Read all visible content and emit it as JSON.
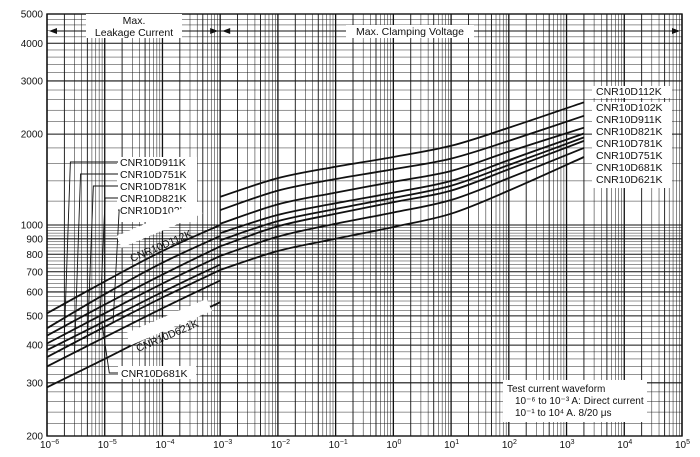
{
  "chart_data": {
    "type": "line",
    "title": "",
    "xlabel": "",
    "ylabel": "",
    "x_scale": "log",
    "y_scale": "log",
    "xlim": [
      1e-06,
      100000.0
    ],
    "ylim": [
      200,
      5000
    ],
    "grid": true,
    "x_ticks": [
      1e-06,
      1e-05,
      0.0001,
      0.001,
      0.01,
      0.1,
      1,
      10,
      100,
      1000,
      10000,
      100000
    ],
    "x_tick_labels": [
      {
        "base": "10",
        "exp": "−6"
      },
      {
        "base": "10",
        "exp": "−5"
      },
      {
        "base": "10",
        "exp": "−4"
      },
      {
        "base": "10",
        "exp": "−3"
      },
      {
        "base": "10",
        "exp": "−2"
      },
      {
        "base": "10",
        "exp": "−1"
      },
      {
        "base": "10",
        "exp": "0"
      },
      {
        "base": "10",
        "exp": "1"
      },
      {
        "base": "10",
        "exp": "2"
      },
      {
        "base": "10",
        "exp": "3"
      },
      {
        "base": "10",
        "exp": "4"
      },
      {
        "base": "10",
        "exp": "5"
      }
    ],
    "y_ticks": [
      200,
      300,
      400,
      500,
      600,
      700,
      800,
      900,
      1000,
      2000,
      3000,
      4000,
      5000
    ],
    "y_tick_labels": [
      "200",
      "300",
      "400",
      "500",
      "600",
      "700",
      "800",
      "900",
      "1000",
      "2000",
      "3000",
      "4000",
      "5000"
    ],
    "regions": [
      {
        "label": "Max.\nLeakage Current",
        "x_from": 1e-06,
        "x_to": 0.001
      },
      {
        "label": "Max. Clamping Voltage",
        "x_from": 0.001,
        "x_to": 100000.0
      }
    ],
    "note": [
      "Test current waveform",
      "10⁻⁶ to 10⁻³ A: Direct current",
      "10⁻¹ to 10⁴ A.  8/20 μs"
    ],
    "series": [
      {
        "name": "CNR10D112K",
        "leakage": [
          [
            1e-06,
            510
          ],
          [
            1e-05,
            650
          ],
          [
            0.0001,
            820
          ],
          [
            0.001,
            1000
          ]
        ],
        "clamping": [
          [
            0.001,
            1240
          ],
          [
            0.01,
            1430
          ],
          [
            0.1,
            1560
          ],
          [
            1,
            1680
          ],
          [
            10,
            1830
          ],
          [
            100,
            2100
          ],
          [
            2000,
            2550
          ]
        ]
      },
      {
        "name": "CNR10D102K",
        "leakage": [
          [
            1e-06,
            455
          ],
          [
            1e-05,
            590
          ],
          [
            0.0001,
            750
          ],
          [
            0.001,
            920
          ]
        ],
        "clamping": [
          [
            0.001,
            1120
          ],
          [
            0.01,
            1300
          ],
          [
            0.1,
            1420
          ],
          [
            1,
            1530
          ],
          [
            10,
            1660
          ],
          [
            100,
            1900
          ],
          [
            2000,
            2300
          ]
        ]
      },
      {
        "name": "CNR10D911K",
        "leakage": [
          [
            1e-06,
            430
          ],
          [
            1e-05,
            545
          ],
          [
            0.0001,
            685
          ],
          [
            0.001,
            850
          ]
        ],
        "clamping": [
          [
            0.001,
            1010
          ],
          [
            0.01,
            1170
          ],
          [
            0.1,
            1280
          ],
          [
            1,
            1390
          ],
          [
            10,
            1510
          ],
          [
            100,
            1750
          ],
          [
            2000,
            2100
          ]
        ]
      },
      {
        "name": "CNR10D821K",
        "leakage": [
          [
            1e-06,
            405
          ],
          [
            1e-05,
            510
          ],
          [
            0.0001,
            640
          ],
          [
            0.001,
            790
          ]
        ],
        "clamping": [
          [
            0.001,
            940
          ],
          [
            0.01,
            1080
          ],
          [
            0.1,
            1180
          ],
          [
            1,
            1280
          ],
          [
            10,
            1400
          ],
          [
            100,
            1640
          ],
          [
            2000,
            2010
          ]
        ]
      },
      {
        "name": "CNR10D781K",
        "leakage": [
          [
            1e-06,
            385
          ],
          [
            1e-05,
            480
          ],
          [
            0.0001,
            600
          ],
          [
            0.001,
            740
          ]
        ],
        "clamping": [
          [
            0.001,
            890
          ],
          [
            0.01,
            1030
          ],
          [
            0.1,
            1130
          ],
          [
            1,
            1230
          ],
          [
            10,
            1350
          ],
          [
            100,
            1580
          ],
          [
            2000,
            1950
          ]
        ]
      },
      {
        "name": "CNR10D751K",
        "leakage": [
          [
            1e-06,
            365
          ],
          [
            1e-05,
            460
          ],
          [
            0.0001,
            575
          ],
          [
            0.001,
            710
          ]
        ],
        "clamping": [
          [
            0.001,
            850
          ],
          [
            0.01,
            990
          ],
          [
            0.1,
            1090
          ],
          [
            1,
            1190
          ],
          [
            10,
            1300
          ],
          [
            100,
            1530
          ],
          [
            2000,
            1900
          ]
        ]
      },
      {
        "name": "CNR10D681K",
        "leakage": [
          [
            1e-06,
            340
          ],
          [
            1e-05,
            425
          ],
          [
            0.0001,
            530
          ],
          [
            0.001,
            655
          ]
        ],
        "clamping": [
          [
            0.001,
            790
          ],
          [
            0.01,
            915
          ],
          [
            0.1,
            1010
          ],
          [
            1,
            1100
          ],
          [
            10,
            1210
          ],
          [
            100,
            1430
          ],
          [
            2000,
            1800
          ]
        ]
      },
      {
        "name": "CNR10D621K",
        "leakage": [
          [
            1e-06,
            290
          ],
          [
            1e-05,
            360
          ],
          [
            0.0001,
            450
          ],
          [
            0.001,
            555
          ]
        ],
        "clamping": [
          [
            0.001,
            710
          ],
          [
            0.01,
            820
          ],
          [
            0.1,
            900
          ],
          [
            1,
            985
          ],
          [
            10,
            1090
          ],
          [
            100,
            1300
          ],
          [
            2000,
            1680
          ]
        ]
      }
    ],
    "left_labels": [
      "CNR10D911K",
      "CNR10D751K",
      "CNR10D781K",
      "CNR10D821K",
      "CNR10D102K"
    ],
    "slanted_labels": [
      "CNR10D112K",
      "CNR10D621K"
    ],
    "bottom_label": "CNR10D681K",
    "right_labels": [
      "CNR10D112K",
      "CNR10D102K",
      "CNR10D911K",
      "CNR10D821K",
      "CNR10D781K",
      "CNR10D751K",
      "CNR10D681K",
      "CNR10D621K"
    ]
  }
}
